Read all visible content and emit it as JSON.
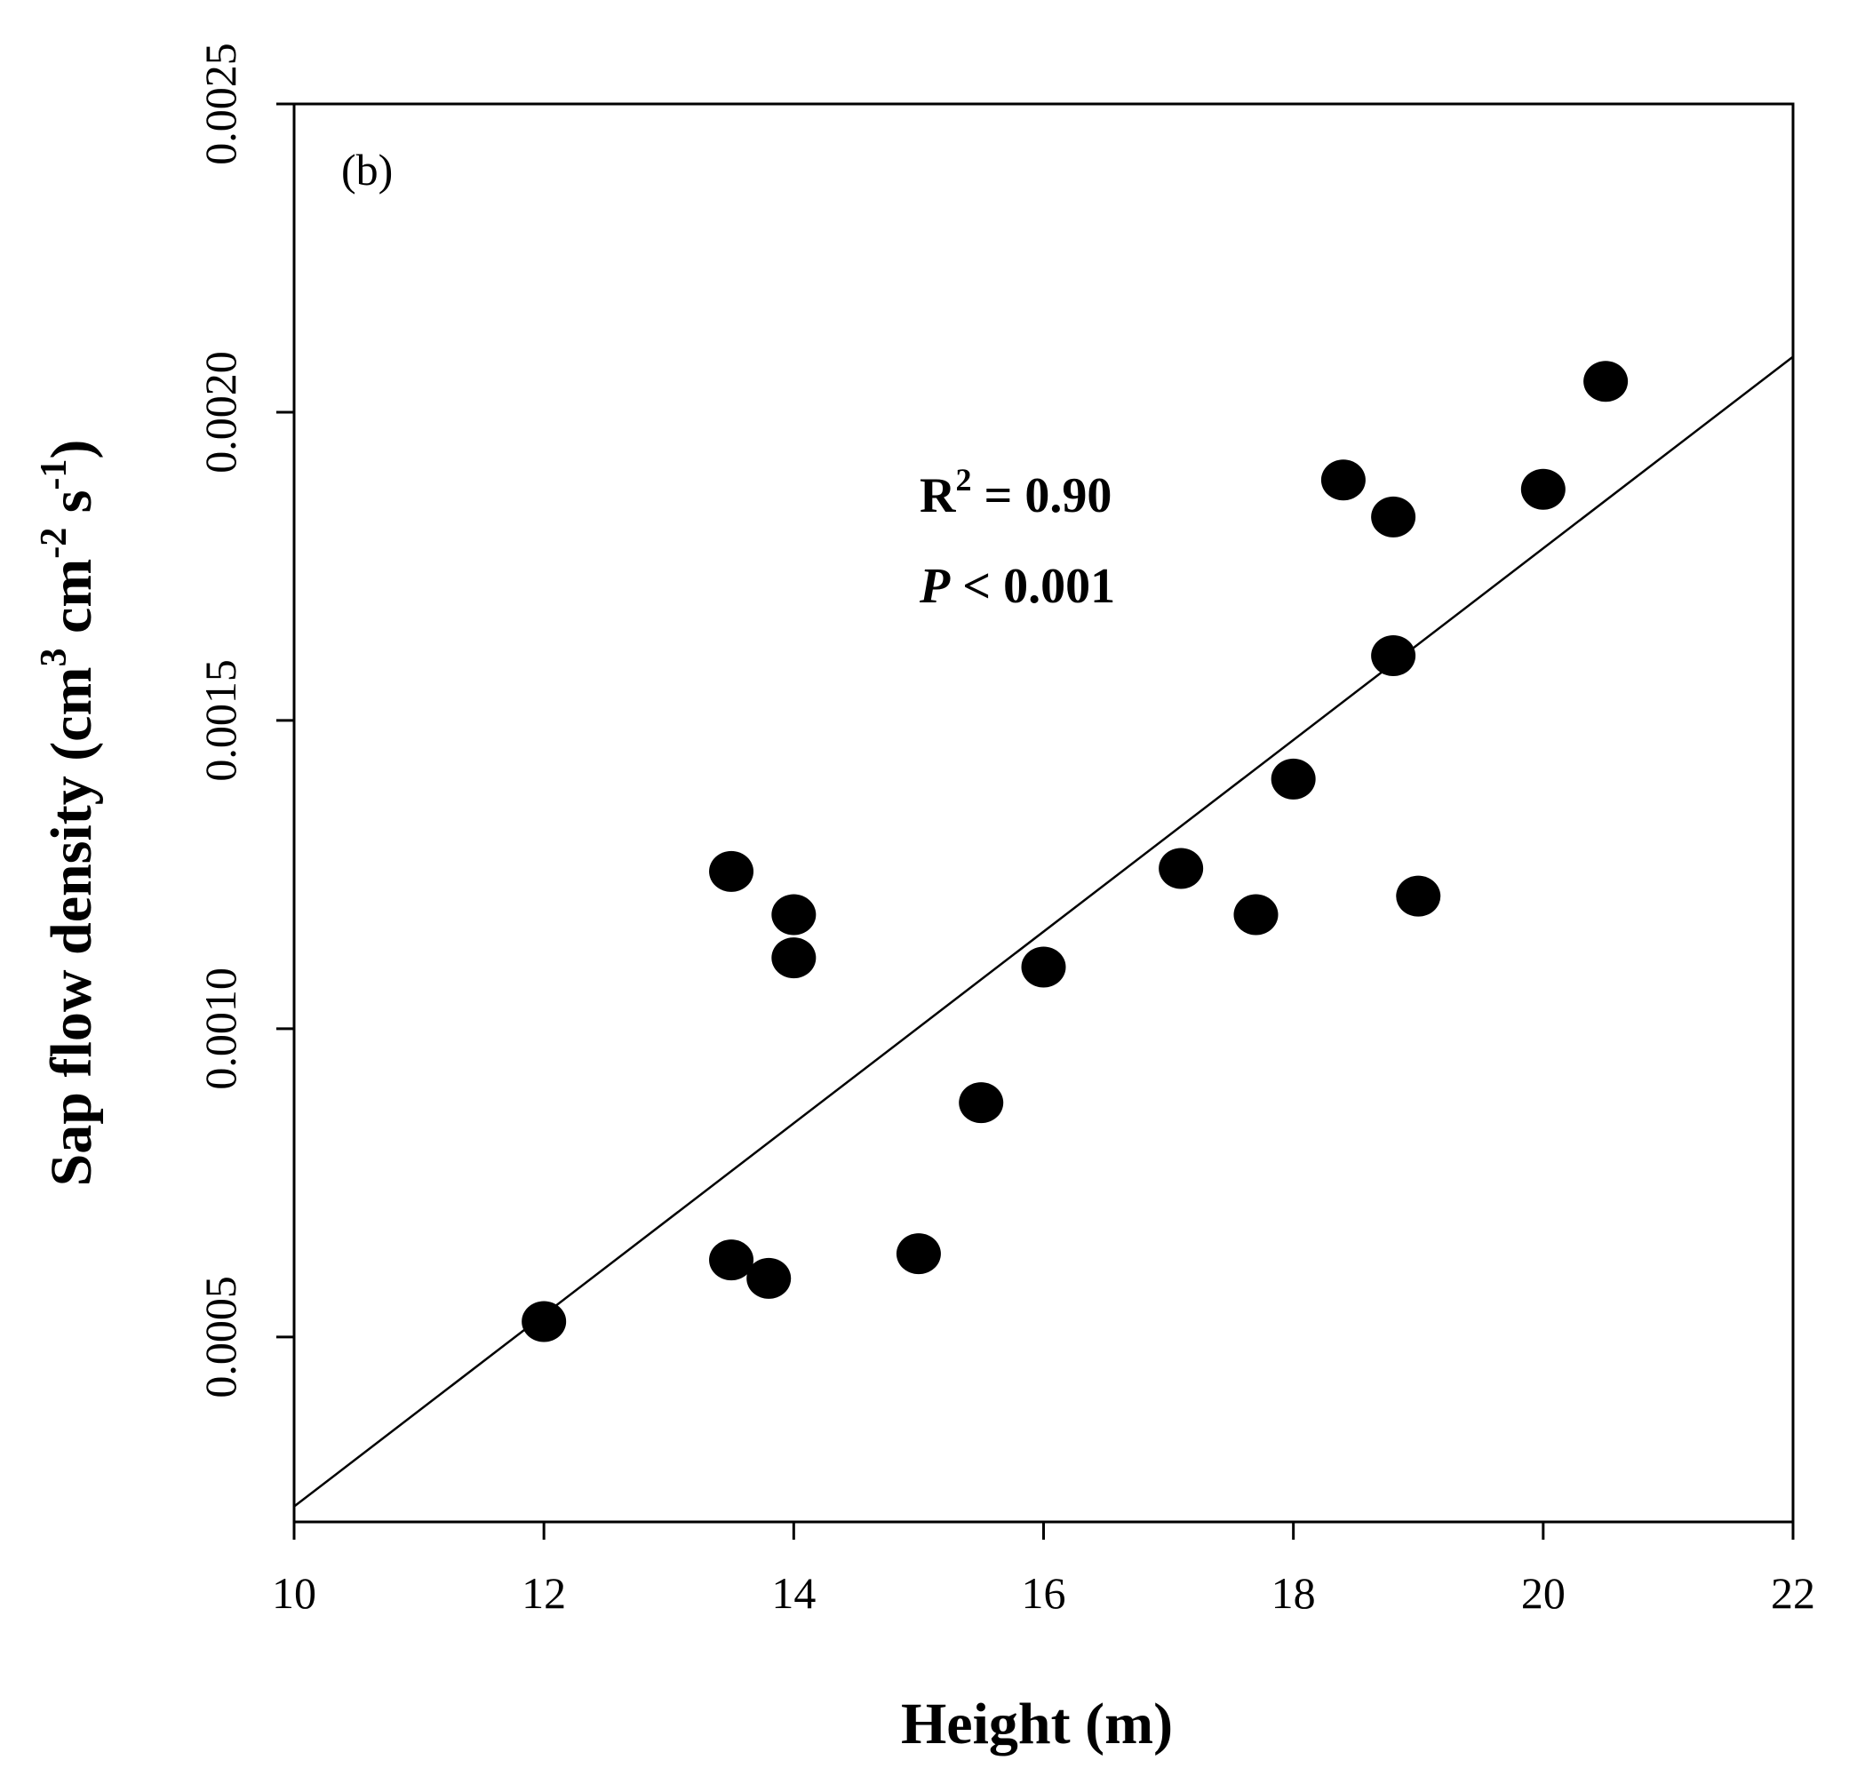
{
  "chart_data": {
    "type": "scatter",
    "panel_label": "(b)",
    "xlabel": "Height (m)",
    "ylabel": {
      "prefix": "Sap flow density (cm",
      "sup1": "3",
      "mid1": " cm",
      "sup2": "-2",
      "mid2": " s",
      "sup3": "-1",
      "suffix": ")"
    },
    "xlim": [
      10,
      22
    ],
    "ylim": [
      0.0002,
      0.0025
    ],
    "xticks": [
      10,
      12,
      14,
      16,
      18,
      20,
      22
    ],
    "xtick_labels": [
      "10",
      "12",
      "14",
      "16",
      "18",
      "20",
      "22"
    ],
    "yticks": [
      0.0005,
      0.001,
      0.0015,
      0.002,
      0.0025
    ],
    "ytick_labels": [
      "0.0005",
      "0.0010",
      "0.0015",
      "0.0020",
      "0.0025"
    ],
    "points": [
      {
        "x": 12.0,
        "y": 0.000525
      },
      {
        "x": 13.5,
        "y": 0.000625
      },
      {
        "x": 13.8,
        "y": 0.000595
      },
      {
        "x": 15.0,
        "y": 0.000635
      },
      {
        "x": 15.5,
        "y": 0.00088
      },
      {
        "x": 13.5,
        "y": 0.001255
      },
      {
        "x": 14.0,
        "y": 0.001185
      },
      {
        "x": 14.0,
        "y": 0.001115
      },
      {
        "x": 16.0,
        "y": 0.0011
      },
      {
        "x": 17.1,
        "y": 0.00126
      },
      {
        "x": 17.7,
        "y": 0.001185
      },
      {
        "x": 19.0,
        "y": 0.001215
      },
      {
        "x": 18.0,
        "y": 0.001405
      },
      {
        "x": 18.8,
        "y": 0.001605
      },
      {
        "x": 18.4,
        "y": 0.00189
      },
      {
        "x": 18.8,
        "y": 0.00183
      },
      {
        "x": 20.0,
        "y": 0.001875
      },
      {
        "x": 20.5,
        "y": 0.00205
      }
    ],
    "fit_line": {
      "x": [
        10,
        22
      ],
      "y": [
        0.000225,
        0.00209
      ]
    },
    "annotations": {
      "r2_label": "R",
      "r2_sup": "2",
      "r2_value": " = 0.90",
      "p_label": "P",
      "p_value": " < 0.001"
    }
  }
}
